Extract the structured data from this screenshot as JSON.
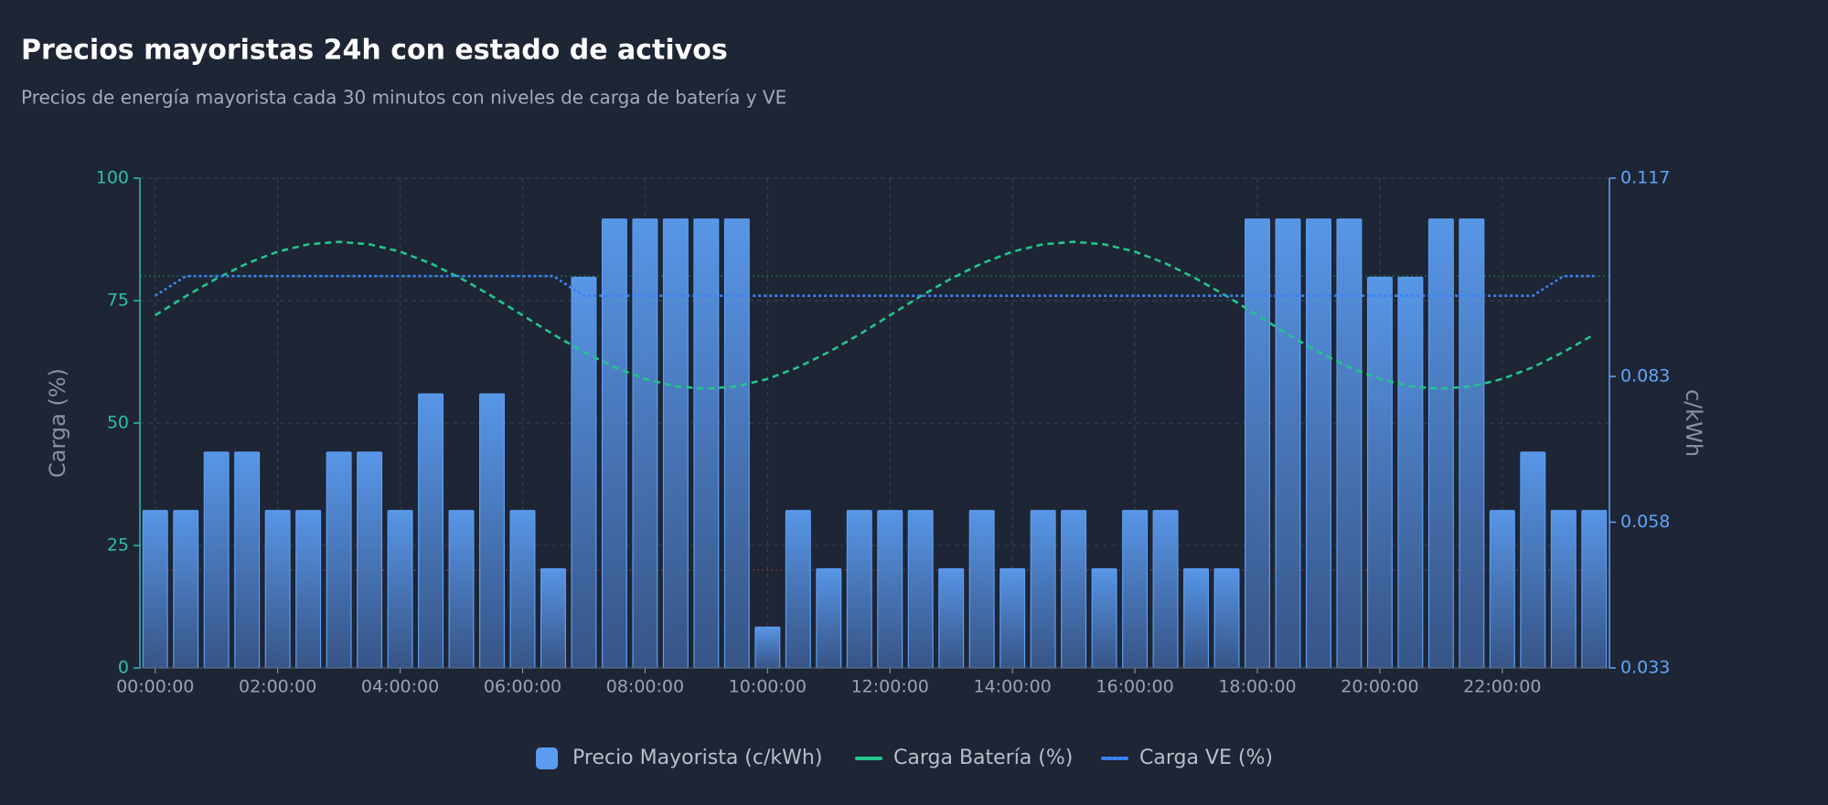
{
  "chart_data": {
    "type": "combo",
    "title": "Precios mayoristas 24h con estado de activos",
    "subtitle": "Precios de energía mayorista cada 30 minutos con niveles de carga de batería y VE",
    "ylabel": "Carga (%)",
    "y2label": "c/kWh",
    "categories": [
      "00:00:00",
      null,
      null,
      null,
      "02:00:00",
      null,
      null,
      null,
      "04:00:00",
      null,
      null,
      null,
      "06:00:00",
      null,
      null,
      null,
      "08:00:00",
      null,
      null,
      null,
      "10:00:00",
      null,
      null,
      null,
      "12:00:00",
      null,
      null,
      null,
      "14:00:00",
      null,
      null,
      null,
      "16:00:00",
      null,
      null,
      null,
      "18:00:00",
      null,
      null,
      null,
      "20:00:00",
      null,
      null,
      null,
      "22:00:00",
      null,
      null,
      null
    ],
    "ylim": [
      0,
      100
    ],
    "yticks": [
      0,
      25,
      50,
      75,
      100
    ],
    "y2lim": [
      0.033,
      0.117
    ],
    "y2ticks": [
      0.033,
      0.058,
      0.083,
      0.117
    ],
    "grid": true,
    "legend": "bottom",
    "reference_lines": [
      {
        "value": 80,
        "color": "#22c55e"
      },
      {
        "value": 20,
        "color": "#ef4444"
      }
    ],
    "series": [
      {
        "name": "Precio Mayorista (c/kWh)",
        "type": "bar",
        "axis": "y2",
        "color": "#5b9cf0",
        "values": [
          0.06,
          0.06,
          0.07,
          0.07,
          0.06,
          0.06,
          0.07,
          0.07,
          0.06,
          0.08,
          0.06,
          0.08,
          0.06,
          0.05,
          0.1,
          0.11,
          0.11,
          0.11,
          0.11,
          0.11,
          0.04,
          0.06,
          0.05,
          0.06,
          0.06,
          0.06,
          0.05,
          0.06,
          0.05,
          0.06,
          0.06,
          0.05,
          0.06,
          0.06,
          0.05,
          0.05,
          0.11,
          0.11,
          0.11,
          0.11,
          0.1,
          0.1,
          0.11,
          0.11,
          0.06,
          0.07,
          0.06,
          0.06
        ]
      },
      {
        "name": "Carga Batería (%)",
        "type": "line",
        "line_style": "dashed",
        "color": "#22c58a",
        "values": [
          72,
          75.9,
          79.5,
          82.6,
          85,
          86.5,
          87,
          86.5,
          85,
          82.6,
          79.5,
          75.9,
          72,
          68.1,
          64.5,
          61.4,
          59,
          57.5,
          57,
          57.5,
          59,
          61.4,
          64.5,
          68.1,
          72,
          75.9,
          79.5,
          82.6,
          85,
          86.5,
          87,
          86.5,
          85,
          82.6,
          79.5,
          75.9,
          72,
          68.1,
          64.5,
          61.4,
          59,
          57.5,
          57,
          57.5,
          59,
          61.4,
          64.5,
          68.1
        ]
      },
      {
        "name": "Carga VE (%)",
        "type": "line",
        "line_style": "dotted",
        "color": "#3b82f6",
        "values": [
          76,
          80,
          80,
          80,
          80,
          80,
          80,
          80,
          80,
          80,
          80,
          80,
          80,
          80,
          76,
          76,
          76,
          76,
          76,
          76,
          76,
          76,
          76,
          76,
          76,
          76,
          76,
          76,
          76,
          76,
          76,
          76,
          76,
          76,
          76,
          76,
          76,
          76,
          76,
          76,
          76,
          76,
          76,
          76,
          76,
          76,
          80,
          80
        ]
      }
    ]
  }
}
